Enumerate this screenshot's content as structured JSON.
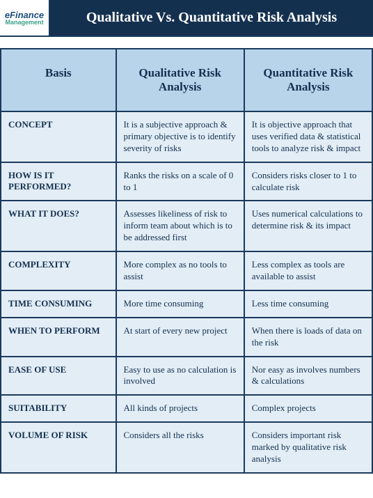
{
  "logo": {
    "line1": "eFinance",
    "line2": "Management"
  },
  "title": "Qualitative Vs. Quantitative Risk Analysis",
  "columns": [
    "Basis",
    "Qualitative Risk Analysis",
    "Quantitative Risk Analysis"
  ],
  "rows": [
    {
      "basis": "CONCEPT",
      "qual": "It is a subjective approach & primary objective is to identify severity of risks",
      "quant": "It is objective approach that uses verified data & statistical tools to analyze risk & impact"
    },
    {
      "basis": "HOW IS IT PERFORMED?",
      "qual": "Ranks the risks on a scale of 0 to 1",
      "quant": "Considers risks closer to 1 to calculate risk"
    },
    {
      "basis": "WHAT IT DOES?",
      "qual": "Assesses likeliness of risk to inform team about which is to be addressed first",
      "quant": "Uses numerical calculations to determine risk & its impact"
    },
    {
      "basis": "COMPLEXITY",
      "qual": "More complex as no tools to assist",
      "quant": "Less complex as tools are available to assist"
    },
    {
      "basis": "TIME CONSUMING",
      "qual": "More time consuming",
      "quant": "Less time consuming"
    },
    {
      "basis": "WHEN TO PERFORM",
      "qual": "At start of every new project",
      "quant": "When there is loads of data on the risk"
    },
    {
      "basis": "EASE OF USE",
      "qual": "Easy to use as no calculation is involved",
      "quant": "Nor easy as involves numbers & calculations"
    },
    {
      "basis": "SUITABILITY",
      "qual": "All kinds of projects",
      "quant": "Complex projects"
    },
    {
      "basis": "VOLUME OF RISK",
      "qual": "Considers all the risks",
      "quant": "Considers important risk marked by qualitative risk analysis"
    }
  ],
  "colors": {
    "header_bg": "#14304f",
    "header_text": "#ffffff",
    "th_bg": "#b8d4ea",
    "cell_bg": "#e2edf6",
    "border": "#1a3a5c",
    "text": "#14304f",
    "logo_top": "#1a4d7a",
    "logo_bot": "#3aa088"
  }
}
